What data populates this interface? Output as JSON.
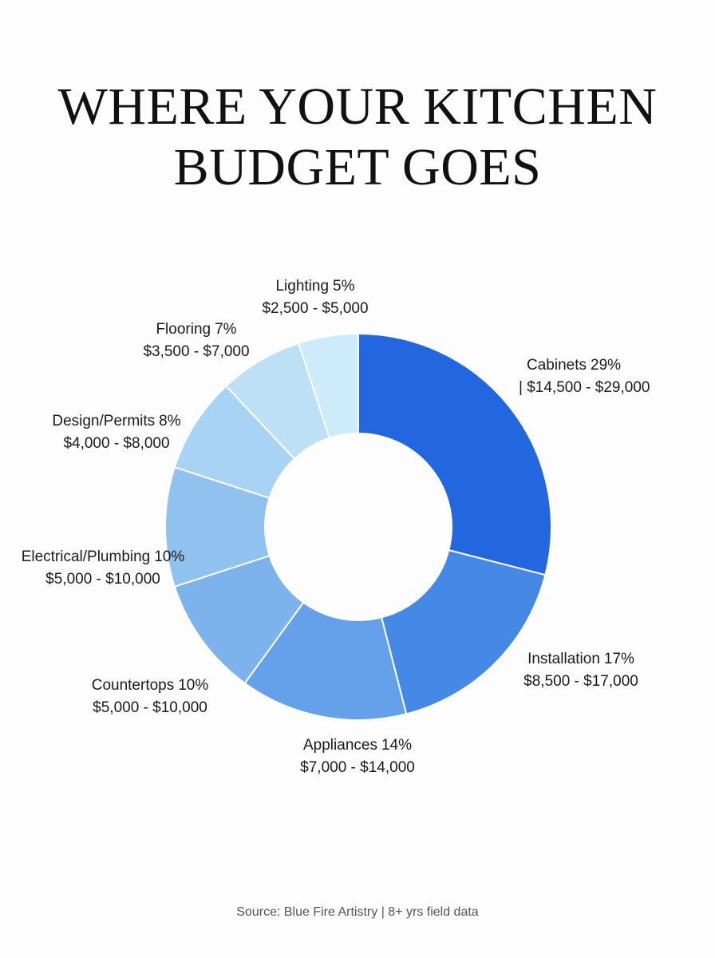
{
  "chart_data": {
    "type": "donut",
    "title": "WHERE YOUR KITCHEN BUDGET GOES",
    "categories": [
      "Cabinets",
      "Installation",
      "Appliances",
      "Countertops",
      "Electrical/Plumbing",
      "Design/Permits",
      "Flooring",
      "Lighting"
    ],
    "values": [
      29,
      17,
      14,
      10,
      10,
      8,
      7,
      5
    ],
    "value_labels": [
      "29%",
      "17%",
      "14%",
      "10%",
      "10%",
      "8%",
      "7%",
      "5%"
    ],
    "ranges": [
      "| $14,500 - $29,000",
      "$8,500 - $17,000",
      "$7,000 - $14,000",
      "$5,000 - $10,000",
      "$5,000 - $10,000",
      "$4,000 - $8,000",
      "$3,500 - $7,000",
      "$2,500 - $5,000"
    ],
    "colors": [
      "#2267e0",
      "#4589e6",
      "#64a1ea",
      "#7db3ec",
      "#90c2ef",
      "#a8d3f4",
      "#bde0f7",
      "#cdebfa"
    ],
    "source": "Source: Blue Fire Artistry | 8+ yrs field data"
  }
}
